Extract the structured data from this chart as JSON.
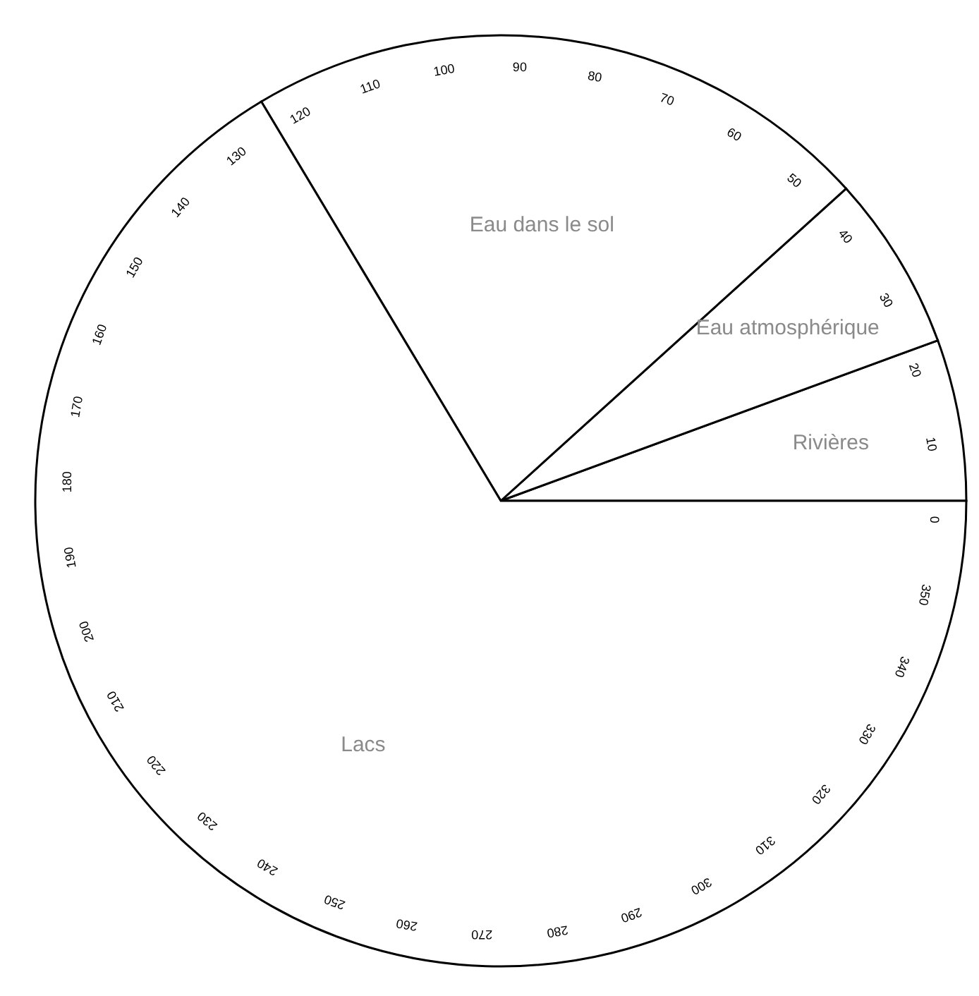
{
  "chart_data": {
    "type": "pie",
    "categories": [
      "Rivières",
      "Eau atmosphérique",
      "Eau dans le sol",
      "Lacs"
    ],
    "values": [
      5.6,
      6.1,
      21.9,
      66.4
    ],
    "colors": [
      "#ffffff",
      "#ffffff",
      "#ffffff",
      "#ffffff"
    ],
    "annotations": [
      "0",
      "10",
      "20",
      "30",
      "40",
      "50",
      "60",
      "70",
      "80",
      "90",
      "100",
      "110",
      "120",
      "130",
      "140",
      "150",
      "160",
      "170",
      "180",
      "190",
      "200",
      "210",
      "220",
      "230",
      "240",
      "250",
      "260",
      "270",
      "280",
      "290",
      "300",
      "310",
      "320",
      "330",
      "340",
      "350"
    ]
  }
}
